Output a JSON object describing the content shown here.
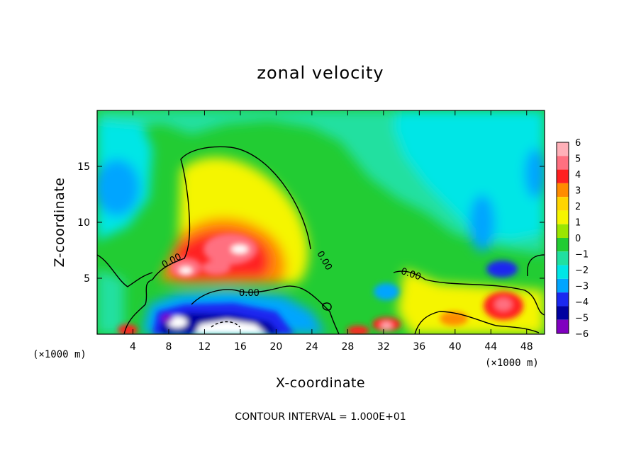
{
  "chart_data": {
    "type": "heatmap",
    "title": "zonal velocity",
    "xlabel": "X-coordinate",
    "ylabel": "Z-coordinate",
    "x_unit_label": "(×1000 m)",
    "x_unit_label_right": "(×1000 m)",
    "xlim": [
      0,
      50
    ],
    "ylim": [
      0,
      20
    ],
    "x_ticks": [
      4,
      8,
      12,
      16,
      20,
      24,
      28,
      32,
      36,
      40,
      44,
      48
    ],
    "y_ticks": [
      5,
      10,
      15
    ],
    "footer": "CONTOUR INTERVAL = 1.000E+01",
    "contour_level_labels": [
      "0.00",
      "0.00",
      "0.00",
      "0.00"
    ],
    "colorbar": {
      "labels": [
        "6",
        "5",
        "4",
        "3",
        "2",
        "1",
        "0",
        "−1",
        "−2",
        "−3",
        "−4",
        "−5",
        "−6"
      ],
      "colors": [
        "#ffb0b8",
        "#ff7080",
        "#ff2020",
        "#ff8c00",
        "#ffd500",
        "#f5f500",
        "#9be600",
        "#22cc33",
        "#20e0a0",
        "#00e6e6",
        "#00a5ff",
        "#1a28f0",
        "#0000a0",
        "#8000c0"
      ]
    },
    "features": [
      {
        "x": 11,
        "z": 5.8,
        "value": 6,
        "desc": "positive core"
      },
      {
        "x": 14,
        "z": 7.2,
        "value": 6
      },
      {
        "x": 16,
        "z": 1.0,
        "value": -6,
        "desc": "negative core near surface"
      },
      {
        "x": 10,
        "z": 1.2,
        "value": -5
      },
      {
        "x": 45,
        "z": 2.5,
        "value": 4
      },
      {
        "x": 45,
        "z": 5.6,
        "value": -4
      },
      {
        "x": 32,
        "z": 1.0,
        "value": 4
      },
      {
        "x": 3,
        "z": 13,
        "value": -3
      },
      {
        "x": 44,
        "z": 10,
        "value": -2
      }
    ]
  }
}
